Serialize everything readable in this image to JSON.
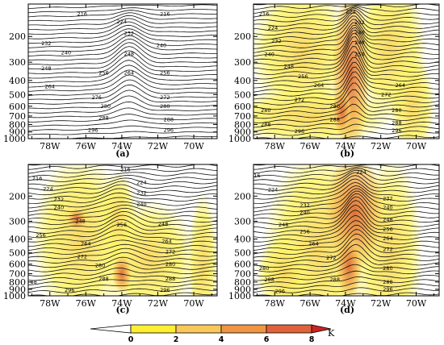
{
  "chart_data": [
    {
      "panel": "(a)",
      "type": "contour",
      "x_ticks": [
        "78W",
        "76W",
        "74W",
        "72W",
        "70W"
      ],
      "x_values": [
        -78,
        -76,
        -74,
        -72,
        -70
      ],
      "xlim": [
        -79.2,
        -68.7
      ],
      "y_ticks": [
        "200",
        "300",
        "400",
        "500",
        "600",
        "700",
        "800",
        "900",
        "1000"
      ],
      "y_values": [
        200,
        300,
        400,
        500,
        600,
        700,
        800,
        900,
        1000
      ],
      "ylim": [
        1000,
        120
      ],
      "y_scale": "log",
      "contour_labels": [
        {
          "text": "216",
          "x": -76.2,
          "p": 140
        },
        {
          "text": "224",
          "x": -74.0,
          "p": 158
        },
        {
          "text": "216",
          "x": -71.6,
          "p": 140
        },
        {
          "text": "232",
          "x": -78.2,
          "p": 222
        },
        {
          "text": "232",
          "x": -73.6,
          "p": 190
        },
        {
          "text": "240",
          "x": -77.1,
          "p": 258
        },
        {
          "text": "240",
          "x": -71.8,
          "p": 230
        },
        {
          "text": "248",
          "x": -78.2,
          "p": 330
        },
        {
          "text": "248",
          "x": -73.6,
          "p": 262
        },
        {
          "text": "256",
          "x": -75.0,
          "p": 355
        },
        {
          "text": "264",
          "x": -73.6,
          "p": 355
        },
        {
          "text": "256",
          "x": -71.6,
          "p": 355
        },
        {
          "text": "264",
          "x": -78.0,
          "p": 440
        },
        {
          "text": "272",
          "x": -71.6,
          "p": 520
        },
        {
          "text": "276",
          "x": -75.4,
          "p": 520
        },
        {
          "text": "280",
          "x": -74.9,
          "p": 600
        },
        {
          "text": "280",
          "x": -71.6,
          "p": 600
        },
        {
          "text": "288",
          "x": -75.0,
          "p": 720
        },
        {
          "text": "288",
          "x": -71.4,
          "p": 740
        },
        {
          "text": "296",
          "x": -75.6,
          "p": 870
        },
        {
          "text": "296",
          "x": -71.4,
          "p": 870
        }
      ]
    },
    {
      "panel": "(b)",
      "type": "contour",
      "x_ticks": [
        "78W",
        "76W",
        "74W",
        "72W",
        "70W"
      ],
      "x_values": [
        -78,
        -76,
        -74,
        -72,
        -70
      ],
      "xlim": [
        -79.2,
        -68.7
      ],
      "y_ticks": [
        "200",
        "300",
        "400",
        "500",
        "600",
        "700",
        "800",
        "900",
        "1000"
      ],
      "y_values": [
        200,
        300,
        400,
        500,
        600,
        700,
        800,
        900,
        1000
      ],
      "ylim": [
        1000,
        120
      ],
      "y_scale": "log",
      "shading": "temperature anomaly (K)",
      "contour_labels": [
        {
          "text": "216",
          "x": -78.6,
          "p": 140
        },
        {
          "text": "224",
          "x": -73.7,
          "p": 135
        },
        {
          "text": "232",
          "x": -73.2,
          "p": 160
        },
        {
          "text": "224",
          "x": -78.1,
          "p": 175
        },
        {
          "text": "240",
          "x": -73.2,
          "p": 188
        },
        {
          "text": "232",
          "x": -77.9,
          "p": 215
        },
        {
          "text": "248",
          "x": -73.2,
          "p": 220
        },
        {
          "text": "240",
          "x": -78.3,
          "p": 265
        },
        {
          "text": "256",
          "x": -73.2,
          "p": 265
        },
        {
          "text": "248",
          "x": -77.2,
          "p": 320
        },
        {
          "text": "256",
          "x": -76.4,
          "p": 375
        },
        {
          "text": "264",
          "x": -75.5,
          "p": 430
        },
        {
          "text": "264",
          "x": -70.9,
          "p": 430
        },
        {
          "text": "272",
          "x": -76.6,
          "p": 540
        },
        {
          "text": "272",
          "x": -71.7,
          "p": 500
        },
        {
          "text": "280",
          "x": -74.6,
          "p": 600
        },
        {
          "text": "280",
          "x": -78.5,
          "p": 640
        },
        {
          "text": "280",
          "x": -71.1,
          "p": 640
        },
        {
          "text": "288",
          "x": -74.6,
          "p": 740
        },
        {
          "text": "288",
          "x": -78.5,
          "p": 800
        },
        {
          "text": "288",
          "x": -71.1,
          "p": 780
        },
        {
          "text": "296",
          "x": -76.6,
          "p": 890
        },
        {
          "text": "296",
          "x": -71.1,
          "p": 880
        }
      ]
    },
    {
      "panel": "(c)",
      "type": "contour",
      "x_ticks": [
        "78W",
        "76W",
        "74W",
        "72W",
        "70W"
      ],
      "x_values": [
        -78,
        -76,
        -74,
        -72,
        -70
      ],
      "xlim": [
        -79.2,
        -68.7
      ],
      "y_ticks": [
        "200",
        "300",
        "400",
        "500",
        "600",
        "700",
        "800",
        "900",
        "1000"
      ],
      "y_values": [
        200,
        300,
        400,
        500,
        600,
        700,
        800,
        900,
        1000
      ],
      "ylim": [
        1000,
        120
      ],
      "y_scale": "log",
      "shading": "temperature anomaly (K)",
      "contour_labels": [
        {
          "text": "216",
          "x": -73.8,
          "p": 130
        },
        {
          "text": "216",
          "x": -78.7,
          "p": 150
        },
        {
          "text": "224",
          "x": -72.9,
          "p": 160
        },
        {
          "text": "224",
          "x": -78.1,
          "p": 178
        },
        {
          "text": "232",
          "x": -72.9,
          "p": 190
        },
        {
          "text": "232",
          "x": -77.5,
          "p": 210
        },
        {
          "text": "240",
          "x": -77.5,
          "p": 240
        },
        {
          "text": "240",
          "x": -72.9,
          "p": 228
        },
        {
          "text": "248",
          "x": -76.3,
          "p": 300
        },
        {
          "text": "256",
          "x": -74.0,
          "p": 318
        },
        {
          "text": "248",
          "x": -71.7,
          "p": 312
        },
        {
          "text": "256",
          "x": -78.5,
          "p": 375
        },
        {
          "text": "264",
          "x": -76.0,
          "p": 430
        },
        {
          "text": "264",
          "x": -71.5,
          "p": 415
        },
        {
          "text": "272",
          "x": -76.2,
          "p": 530
        },
        {
          "text": "272",
          "x": -71.3,
          "p": 490
        },
        {
          "text": "280",
          "x": -75.2,
          "p": 610
        },
        {
          "text": "280",
          "x": -71.3,
          "p": 600
        },
        {
          "text": "288",
          "x": -75.0,
          "p": 760
        },
        {
          "text": "288",
          "x": -71.3,
          "p": 760
        },
        {
          "text": "296",
          "x": -76.9,
          "p": 910
        },
        {
          "text": "296",
          "x": -71.6,
          "p": 910
        },
        {
          "text": "88",
          "x": -78.9,
          "p": 800
        }
      ]
    },
    {
      "panel": "(d)",
      "type": "contour",
      "x_ticks": [
        "78W",
        "76W",
        "74W",
        "72W",
        "70W"
      ],
      "x_values": [
        -78,
        -76,
        -74,
        -72,
        -70
      ],
      "xlim": [
        -79.2,
        -68.7
      ],
      "y_ticks": [
        "200",
        "300",
        "400",
        "500",
        "600",
        "700",
        "800",
        "900",
        "1000"
      ],
      "y_values": [
        200,
        300,
        400,
        500,
        600,
        700,
        800,
        900,
        1000
      ],
      "ylim": [
        1000,
        120
      ],
      "y_scale": "log",
      "shading": "temperature anomaly (K)",
      "contour_labels": [
        {
          "text": "16",
          "x": -79.0,
          "p": 143
        },
        {
          "text": "224",
          "x": -73.1,
          "p": 135
        },
        {
          "text": "224",
          "x": -78.1,
          "p": 180
        },
        {
          "text": "232",
          "x": -71.6,
          "p": 208
        },
        {
          "text": "232",
          "x": -76.3,
          "p": 232
        },
        {
          "text": "240",
          "x": -71.6,
          "p": 240
        },
        {
          "text": "240",
          "x": -76.3,
          "p": 260
        },
        {
          "text": "248",
          "x": -71.6,
          "p": 292
        },
        {
          "text": "248",
          "x": -77.5,
          "p": 318
        },
        {
          "text": "256",
          "x": -71.6,
          "p": 340
        },
        {
          "text": "256",
          "x": -76.3,
          "p": 355
        },
        {
          "text": "264",
          "x": -71.6,
          "p": 395
        },
        {
          "text": "264",
          "x": -75.8,
          "p": 430
        },
        {
          "text": "272",
          "x": -71.6,
          "p": 470
        },
        {
          "text": "272",
          "x": -74.8,
          "p": 540
        },
        {
          "text": "280",
          "x": -71.6,
          "p": 640
        },
        {
          "text": "280",
          "x": -78.6,
          "p": 640
        },
        {
          "text": "288",
          "x": -78.3,
          "p": 770
        },
        {
          "text": "288",
          "x": -74.6,
          "p": 770
        },
        {
          "text": "288",
          "x": -71.6,
          "p": 800
        },
        {
          "text": "296",
          "x": -77.7,
          "p": 930
        },
        {
          "text": "296",
          "x": -71.6,
          "p": 900
        }
      ]
    }
  ],
  "colorbar": {
    "ticks": [
      "0",
      "2",
      "4",
      "6",
      "8"
    ],
    "unit": "K",
    "colors": [
      "#ffffff",
      "#ffee33",
      "#f9c75a",
      "#ef9544",
      "#e0623a",
      "#cc2222"
    ]
  }
}
